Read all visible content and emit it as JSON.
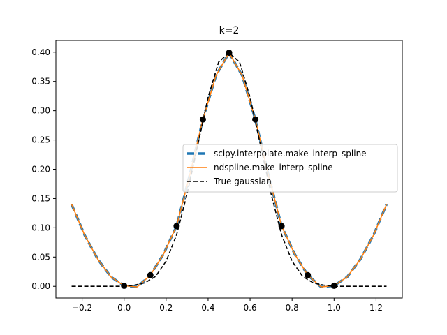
{
  "chart_data": {
    "type": "line",
    "title": "k=2",
    "xlabel": "",
    "ylabel": "",
    "xlim": [
      -0.325,
      1.325
    ],
    "ylim": [
      -0.02,
      0.42
    ],
    "xticks": [
      -0.2,
      0.0,
      0.2,
      0.4,
      0.6,
      0.8,
      1.0,
      1.2
    ],
    "xtick_labels": [
      "−0.2",
      "0.0",
      "0.2",
      "0.4",
      "0.6",
      "0.8",
      "1.0",
      "1.2"
    ],
    "yticks": [
      0.0,
      0.05,
      0.1,
      0.15,
      0.2,
      0.25,
      0.3,
      0.35,
      0.4
    ],
    "ytick_labels": [
      "0.00",
      "0.05",
      "0.10",
      "0.15",
      "0.20",
      "0.25",
      "0.30",
      "0.35",
      "0.40"
    ],
    "grid": false,
    "legend_position": "center-right",
    "series": [
      {
        "name": "scipy.interpolate.make_interp_spline",
        "color": "#1f77b4",
        "style": "dashed-thick",
        "x": [
          -0.25,
          -0.1875,
          -0.125,
          -0.0625,
          0.0,
          0.0625,
          0.125,
          0.1875,
          0.25,
          0.3125,
          0.375,
          0.4375,
          0.5,
          0.5625,
          0.625,
          0.6875,
          0.75,
          0.8125,
          0.875,
          0.9375,
          1.0,
          1.0625,
          1.125,
          1.1875,
          1.25
        ],
        "y": [
          0.14,
          0.087,
          0.046,
          0.016,
          0.001,
          -0.001,
          0.019,
          0.055,
          0.103,
          0.19,
          0.285,
          0.36,
          0.399,
          0.36,
          0.285,
          0.19,
          0.103,
          0.055,
          0.019,
          -0.001,
          0.001,
          0.016,
          0.046,
          0.087,
          0.14
        ]
      },
      {
        "name": "ndspline.make_interp_spline",
        "color": "#ff7f0e",
        "style": "solid",
        "x": [
          -0.25,
          -0.1875,
          -0.125,
          -0.0625,
          0.0,
          0.0625,
          0.125,
          0.1875,
          0.25,
          0.3125,
          0.375,
          0.4375,
          0.5,
          0.5625,
          0.625,
          0.6875,
          0.75,
          0.8125,
          0.875,
          0.9375,
          1.0,
          1.0625,
          1.125,
          1.1875,
          1.25
        ],
        "y": [
          0.14,
          0.087,
          0.046,
          0.016,
          0.001,
          -0.001,
          0.019,
          0.055,
          0.103,
          0.19,
          0.285,
          0.36,
          0.399,
          0.36,
          0.285,
          0.19,
          0.103,
          0.055,
          0.019,
          -0.001,
          0.001,
          0.016,
          0.046,
          0.087,
          0.14
        ]
      },
      {
        "name": "True gaussian",
        "color": "#000000",
        "style": "dashed",
        "x": [
          -0.25,
          -0.2,
          -0.15,
          -0.1,
          -0.05,
          0.0,
          0.05,
          0.1,
          0.15,
          0.2,
          0.25,
          0.3,
          0.35,
          0.4,
          0.45,
          0.5,
          0.55,
          0.6,
          0.65,
          0.7,
          0.75,
          0.8,
          0.85,
          0.9,
          0.95,
          1.0,
          1.05,
          1.1,
          1.15,
          1.2,
          1.25
        ],
        "y": [
          0.0,
          0.0,
          0.0,
          0.0,
          0.0,
          0.0,
          0.002,
          0.006,
          0.017,
          0.043,
          0.088,
          0.158,
          0.24,
          0.323,
          0.383,
          0.399,
          0.383,
          0.323,
          0.24,
          0.158,
          0.088,
          0.043,
          0.017,
          0.006,
          0.002,
          0.0,
          0.0,
          0.0,
          0.0,
          0.0,
          0.0
        ]
      }
    ],
    "knots": {
      "color": "#000000",
      "x": [
        0.0,
        0.125,
        0.25,
        0.375,
        0.5,
        0.625,
        0.75,
        0.875,
        1.0
      ],
      "y": [
        0.001,
        0.019,
        0.103,
        0.285,
        0.399,
        0.285,
        0.103,
        0.019,
        0.001
      ]
    }
  }
}
